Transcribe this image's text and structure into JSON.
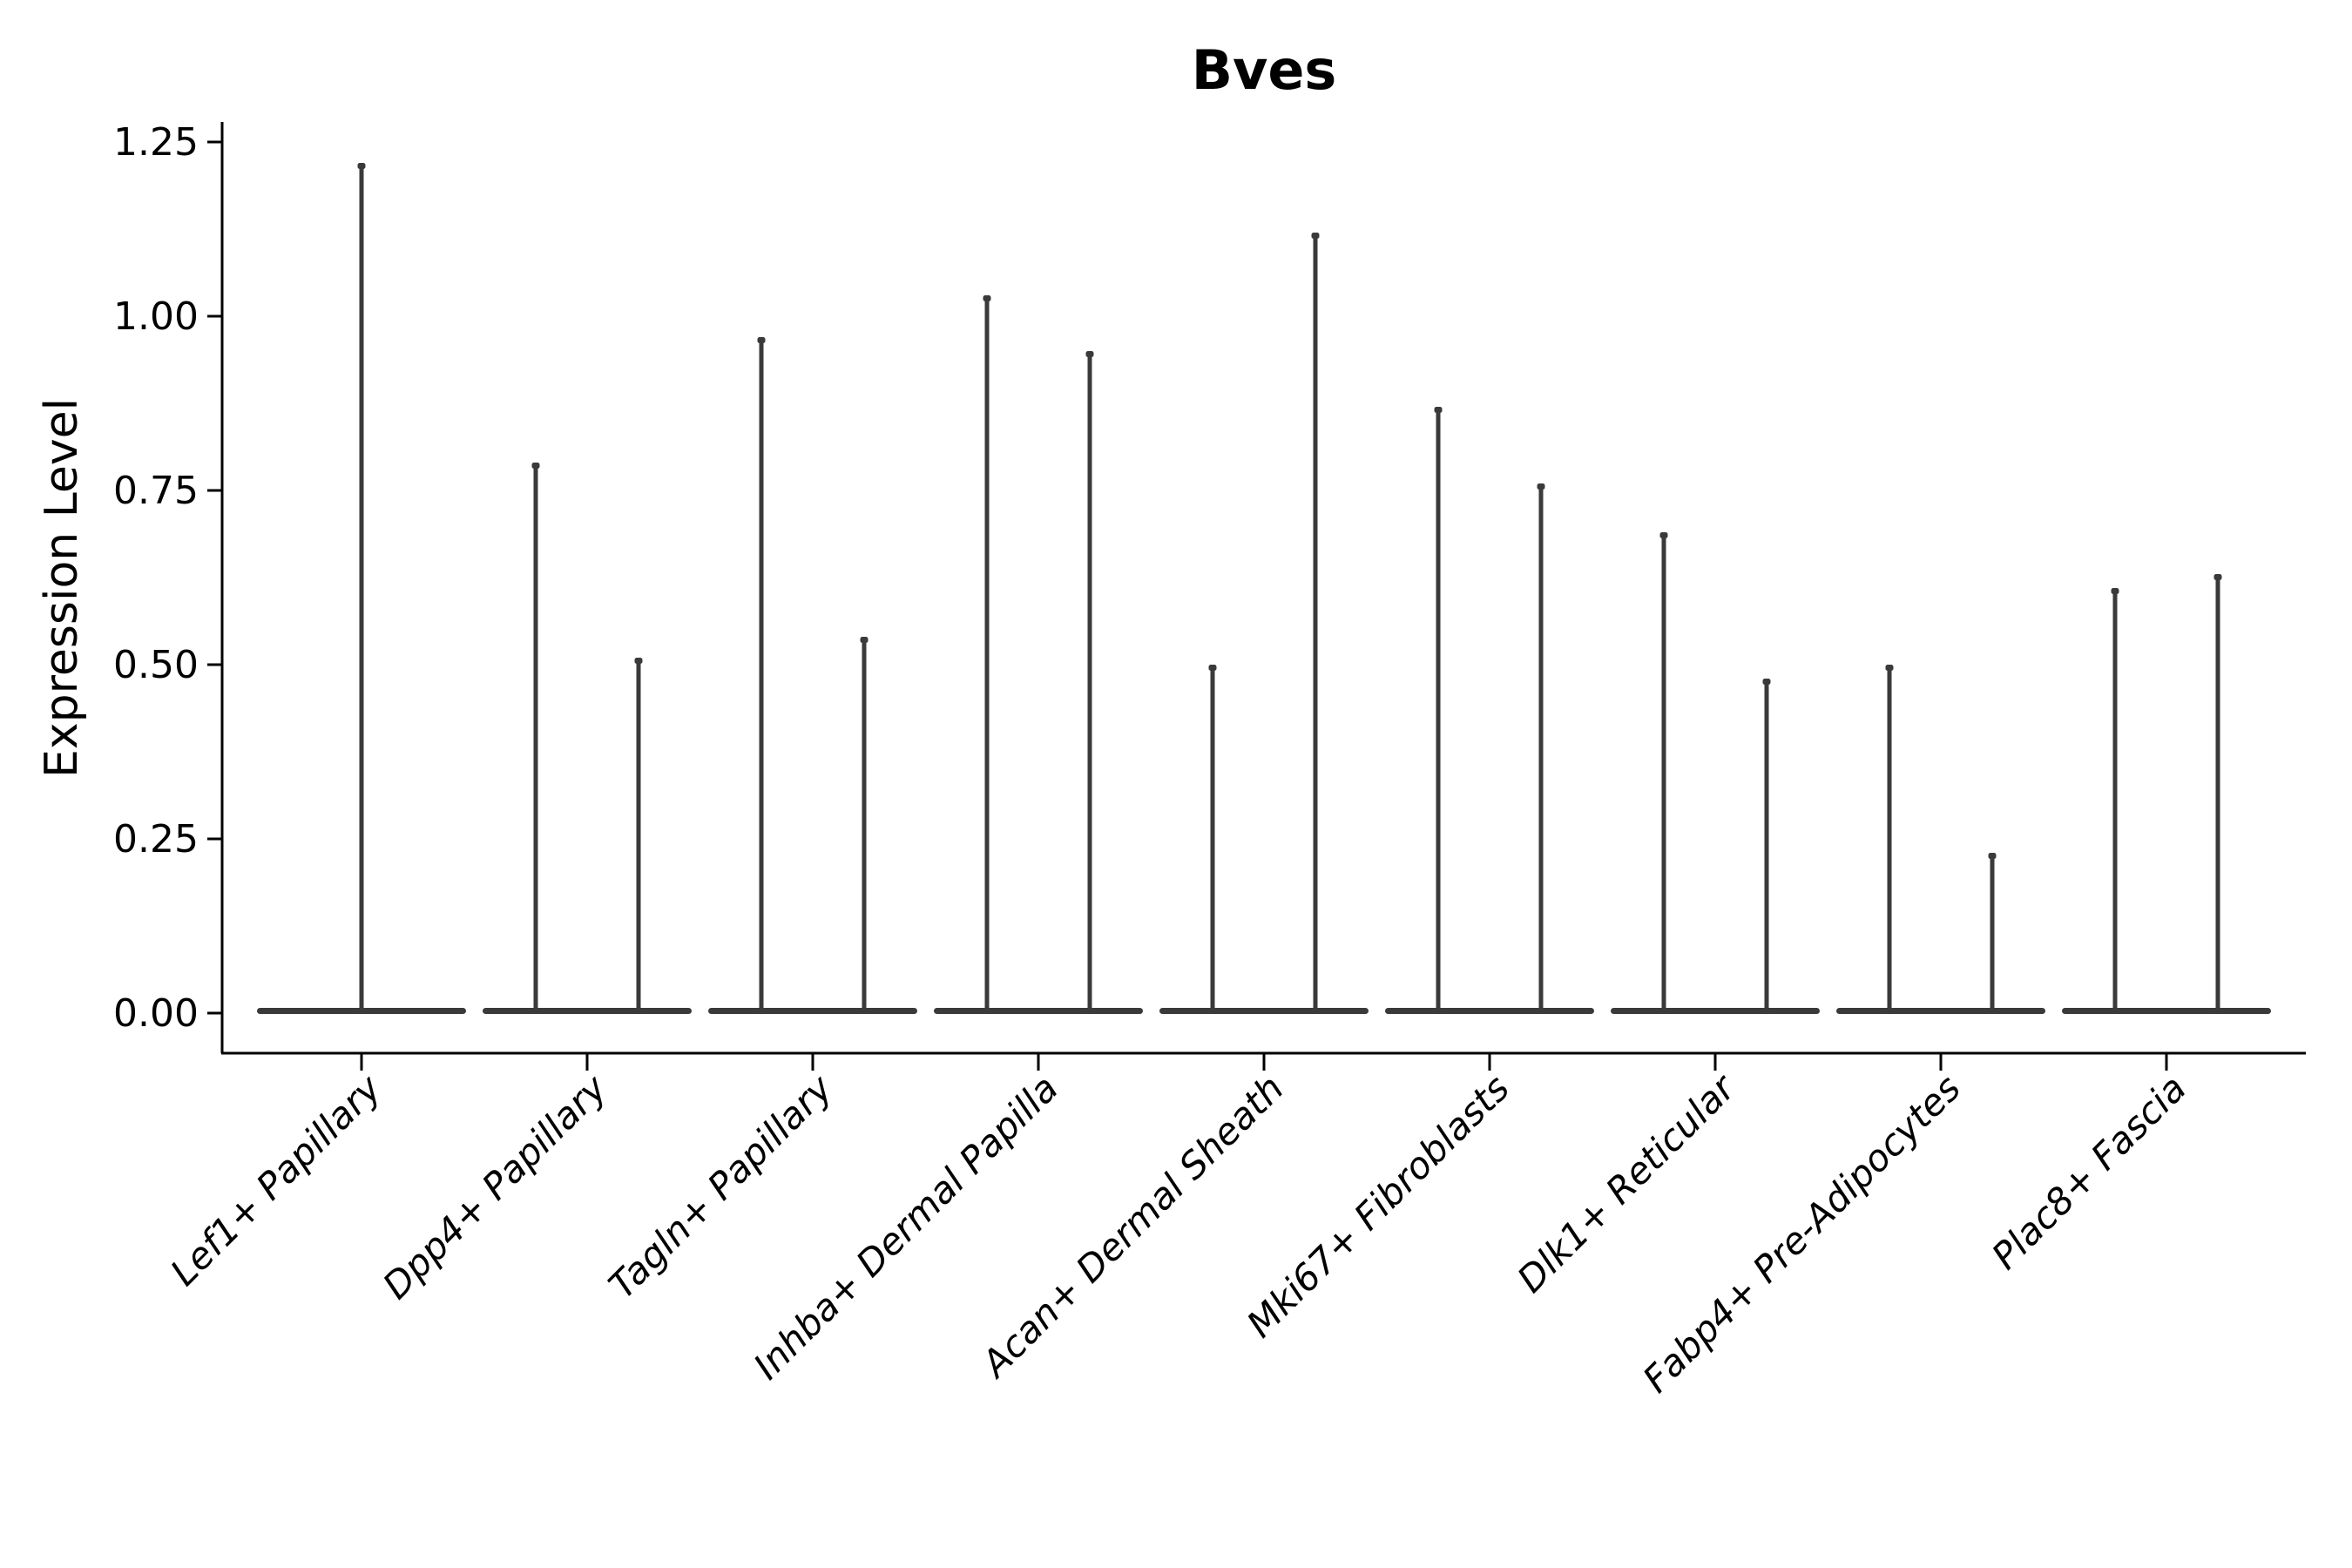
{
  "chart_data": {
    "type": "violin",
    "title": "Bves",
    "xlabel": "",
    "ylabel": "Expression Level",
    "ylim": [
      -0.06,
      1.28
    ],
    "yticks": [
      0.0,
      0.25,
      0.5,
      0.75,
      1.0,
      1.25
    ],
    "grid": false,
    "legend": null,
    "categories": [
      "Lef1+ Papillary",
      "Dpp4+ Papillary",
      "Tagln+ Papillary",
      "Inhba+ Dermal Papilla",
      "Acan+ Dermal Sheath",
      "Mki67+ Fibroblasts",
      "Dlk1+ Reticular",
      "Fabp4+ Pre-Adipocytes",
      "Plac8+ Fascia"
    ],
    "groups": [
      {
        "category": "Lef1+ Papillary",
        "violin_maxima": [
          1.22
        ]
      },
      {
        "category": "Dpp4+ Papillary",
        "violin_maxima": [
          0.79,
          0.51
        ]
      },
      {
        "category": "Tagln+ Papillary",
        "violin_maxima": [
          0.97,
          0.54
        ]
      },
      {
        "category": "Inhba+ Dermal Papilla",
        "violin_maxima": [
          1.03,
          0.95
        ]
      },
      {
        "category": "Acan+ Dermal Sheath",
        "violin_maxima": [
          0.5,
          1.12
        ]
      },
      {
        "category": "Mki67+ Fibroblasts",
        "violin_maxima": [
          0.87,
          0.76
        ]
      },
      {
        "category": "Dlk1+ Reticular",
        "violin_maxima": [
          0.69,
          0.48
        ]
      },
      {
        "category": "Fabp4+ Pre-Adipocytes",
        "violin_maxima": [
          0.5,
          0.23
        ]
      },
      {
        "category": "Plac8+ Fascia",
        "violin_maxima": [
          0.61,
          0.63
        ]
      }
    ],
    "colors": {
      "violin": "#3a3a3a",
      "axis": "#000000",
      "text": "#000000",
      "background": "#ffffff"
    }
  }
}
